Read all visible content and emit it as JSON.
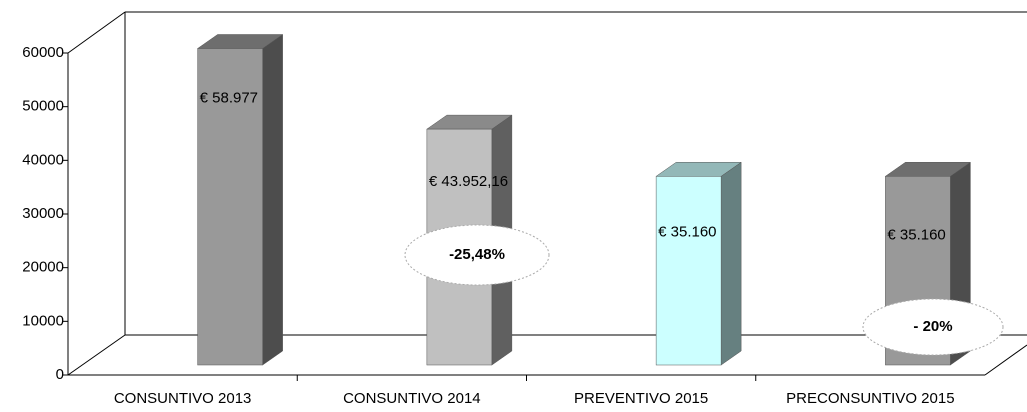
{
  "chart_data": {
    "type": "bar3d",
    "categories": [
      "CONSUNTIVO 2013",
      "CONSUNTIVO 2014",
      "PREVENTIVO 2015",
      "PRECONSUNTIVO 2015"
    ],
    "values": [
      58977,
      43952.16,
      35160,
      35160
    ],
    "value_labels": [
      "€ 58.977",
      "€ 43.952,16",
      "€ 35.160",
      "€ 35.160"
    ],
    "colors": [
      "#999999",
      "#c0c0c0",
      "#ccffff",
      "#999999"
    ],
    "ylim": [
      0,
      60000
    ],
    "yticks": [
      0,
      10000,
      20000,
      30000,
      40000,
      50000,
      60000
    ],
    "annotations": [
      "-25,48%",
      "- 20%"
    ]
  }
}
